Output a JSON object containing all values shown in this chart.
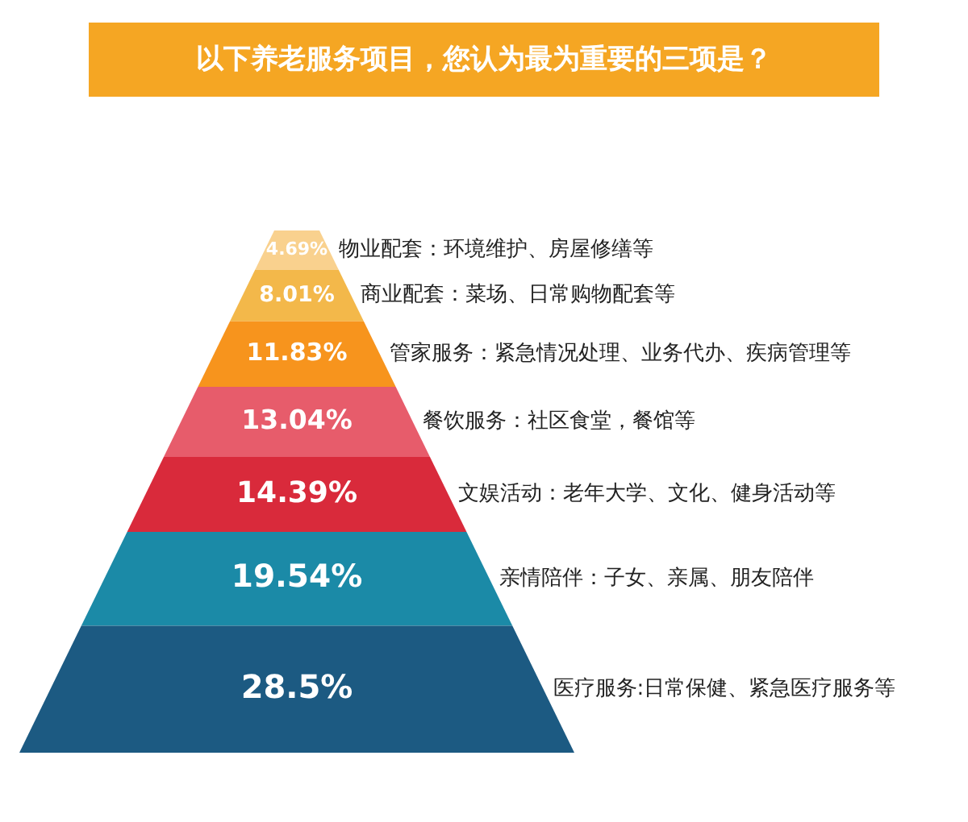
{
  "chart_data": {
    "type": "other",
    "title": "以下养老服务项目，您认为最为重要的三项是？",
    "categories": [
      "物业配套：环境维护、房屋修缮等",
      "商业配套：菜场、日常购物配套等",
      "管家服务：紧急情况处理、业务代办、疾病管理等",
      "餐饮服务：社区食堂，餐馆等",
      "文娱活动：老年大学、文化、健身活动等",
      "亲情陪伴：子女、亲属、朋友陪伴",
      "医疗服务:日常保健、紧急医疗服务等"
    ],
    "values": [
      4.69,
      8.01,
      11.83,
      13.04,
      14.39,
      19.54,
      28.5
    ],
    "value_labels": [
      "4.69%",
      "8.01%",
      "11.83%",
      "13.04%",
      "14.39%",
      "19.54%",
      "28.5%"
    ],
    "colors": [
      "#f9d18e",
      "#f3b84a",
      "#f7941d",
      "#e75c6b",
      "#d92a3b",
      "#1b8aa7",
      "#1c5a82"
    ],
    "data_labels": true
  }
}
